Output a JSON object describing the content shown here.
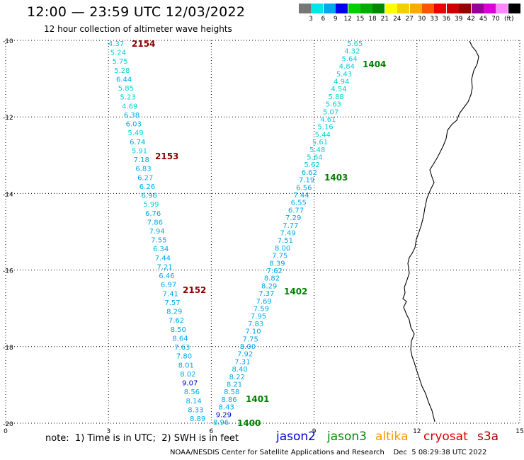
{
  "header": {
    "title": "12:00 — 23:59 UTC 12/03/2022",
    "subtitle": "12 hour collection of altimeter wave heights"
  },
  "colorbar": {
    "colors": [
      "#777777",
      "#00e5e5",
      "#00a8f0",
      "#0000ee",
      "#00d000",
      "#00b000",
      "#008800",
      "#ffff00",
      "#f0d000",
      "#ffaa00",
      "#ff5500",
      "#ee0000",
      "#cc0000",
      "#990000",
      "#990099",
      "#dd00dd",
      "#ff88ff",
      "#000000"
    ],
    "labels": [
      "3",
      "6",
      "9",
      "12",
      "15",
      "18",
      "21",
      "24",
      "27",
      "30",
      "33",
      "36",
      "39",
      "42",
      "45",
      "70"
    ],
    "unit": "(ft)"
  },
  "axes": {
    "x_ticks": [
      "0",
      "3",
      "6",
      "9",
      "12",
      "15"
    ],
    "y_ticks": [
      "10",
      "12",
      "14",
      "16",
      "18",
      "20"
    ]
  },
  "map_data": {
    "passes": [
      {
        "id": "2154",
        "satellite": "cryosat",
        "color": "#8b0000",
        "values": [
          "4.37",
          "5.24",
          "5.75",
          "5.28",
          "6.44",
          "5.85",
          "5.23",
          "4.69",
          "6.38",
          "6.03",
          "5.49",
          "6.74",
          "5.91",
          "7.18",
          "6.83",
          "6.27",
          "6.26",
          "6.96",
          "5.99",
          "6.76",
          "7.86",
          "7.94",
          "7.55",
          "6.34",
          "7.44",
          "7.21",
          "6.46",
          "6.97",
          "7.41",
          "7.57",
          "8.29",
          "7.62",
          "8.50",
          "8.64",
          "7.63",
          "7.80",
          "8.01",
          "8.02",
          "9.07",
          "8.56",
          "8.14",
          "8.33",
          "8.89"
        ]
      },
      {
        "id": "2153",
        "satellite": "cryosat",
        "color": "#8b0000",
        "values": []
      },
      {
        "id": "2152",
        "satellite": "cryosat",
        "color": "#8b0000",
        "values": []
      },
      {
        "id": "1404",
        "satellite": "jason3",
        "color": "#008000",
        "values": [
          "5.65",
          "4.32",
          "5.64",
          "4.84",
          "5.43",
          "4.94",
          "4.54",
          "5.88",
          "5.63",
          "5.07",
          "4.61",
          "5.16",
          "5.44",
          "5.61",
          "5.48",
          "5.64",
          "5.62",
          "6.62",
          "7.19",
          "6.56",
          "7.44",
          "6.55",
          "6.77",
          "7.29",
          "7.77",
          "7.49",
          "7.51",
          "8.00",
          "7.75",
          "8.39",
          "7.62",
          "8.82",
          "8.29",
          "7.37",
          "7.69",
          "7.59",
          "7.95",
          "7.83",
          "7.10",
          "7.75",
          "8.00",
          "7.92",
          "7.31",
          "8.40",
          "8.22",
          "8.21",
          "8.58",
          "8.86",
          "8.43",
          "9.29",
          "8.96"
        ]
      },
      {
        "id": "1403",
        "satellite": "jason3",
        "color": "#008000",
        "values": []
      },
      {
        "id": "1402",
        "satellite": "jason3",
        "color": "#008000",
        "values": []
      },
      {
        "id": "1401",
        "satellite": "jason3",
        "color": "#008000",
        "values": []
      },
      {
        "id": "1400",
        "satellite": "jason3",
        "color": "#008000",
        "values": []
      }
    ]
  },
  "footer": {
    "note": "note:  1) Time is in UTC;  2) SWH is in feet",
    "satellites": [
      {
        "name": "jason2",
        "color": "#0000cc"
      },
      {
        "name": "jason3",
        "color": "#008800"
      },
      {
        "name": "altika",
        "color": "#ff9900"
      },
      {
        "name": "cryosat",
        "color": "#dd0000"
      },
      {
        "name": "s3a",
        "color": "#aa0000"
      }
    ],
    "credit": "NOAA/NESDIS Center for Satellite Applications and Research    Dec  5 08:29:38 UTC 2022"
  }
}
